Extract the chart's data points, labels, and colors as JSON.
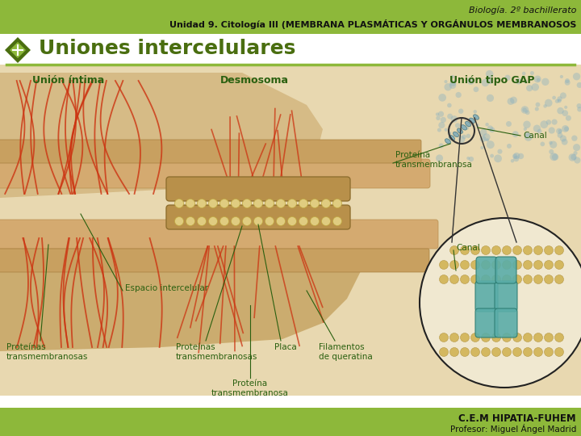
{
  "header_bg_color": "#8db83a",
  "header_text1": "Biología. 2º bachillerato",
  "header_text2": "Unidad 9. Citología III (MEMBRANA PLASMÁTICAS Y ORGÁNULOS MEMBRANOSOS",
  "header_text_color": "#111111",
  "title_text": "Uniones intercelulares",
  "title_color": "#4a6e10",
  "title_underline_color": "#8db83a",
  "label1": "Unión íntima",
  "label2": "Desmosoma",
  "label3": "Unión tipo GAP",
  "label_color": "#2a6010",
  "ann_prot_trans": "Proteína\ntransmembranosa",
  "ann_canal1": "Canal",
  "ann_canal2": "Canal",
  "ann_espacio": "Espacio intercelular",
  "ann_prot1": "Proteínas\ntransmembranosas",
  "ann_prot2": "Proteínas\ntransmembranosas",
  "ann_placa": "Placa",
  "ann_filamentos": "Filamentos\nde queratina",
  "ann_prot3": "Proteína\ntransmembranosa",
  "ann_color": "#2a6010",
  "footer_bg_color": "#8db83a",
  "footer_text1": "C.E.M HIPATIA-FUHEM",
  "footer_text2": "Profesor: Miguel Ángel Madrid",
  "footer_color": "#111111",
  "bg_color": "#ffffff",
  "illus_bg": "#e8d8b0",
  "cell_top": "#d4b87a",
  "cell_mid": "#c8a060",
  "membrane_color": "#c8a868",
  "desmosoma_plaque": "#c8a050",
  "bead_color": "#e0cc80",
  "red_filament": "#cc2200",
  "gap_bg": "#f0ead8",
  "gap_border": "#333333",
  "teal_color": "#5aada8",
  "teal_dark": "#2a7a70",
  "icon_outer": "#4a6e10",
  "icon_inner": "#8db83a"
}
